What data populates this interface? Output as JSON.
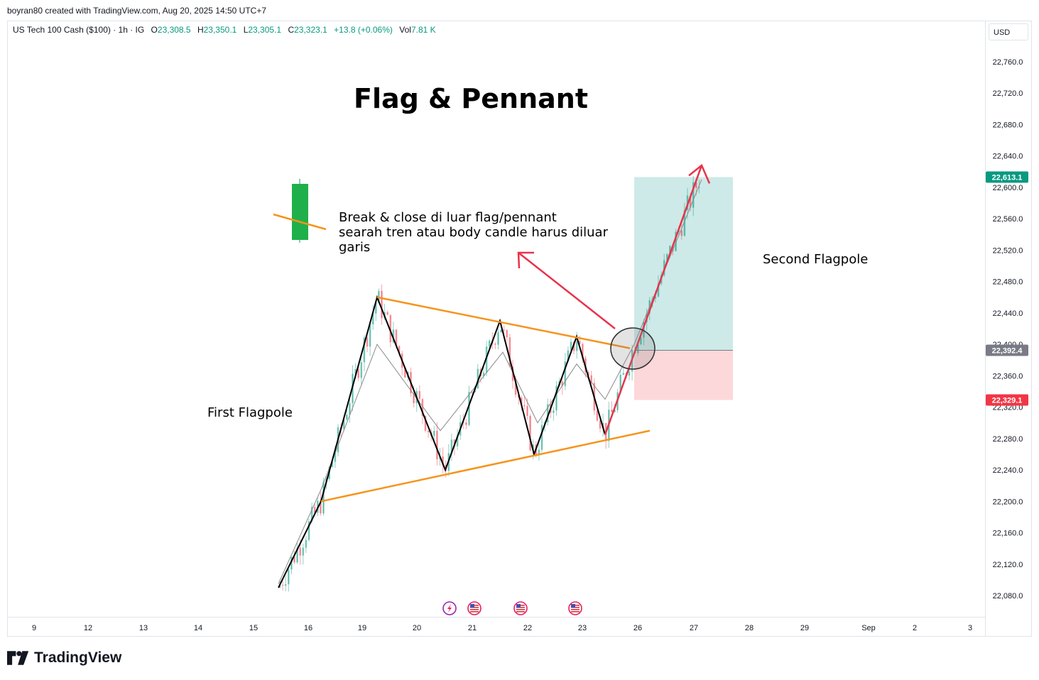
{
  "header": {
    "credit": "boyran80 created with TradingView.com, Aug 20, 2025 14:50 UTC+7",
    "symbol": "US Tech 100 Cash ($100) · 1h · IG",
    "o_label": "O",
    "o_value": "23,308.5",
    "h_label": "H",
    "h_value": "23,350.1",
    "l_label": "L",
    "l_value": "23,305.1",
    "c_label": "C",
    "c_value": "23,323.1",
    "change": "+13.8 (+0.06%)",
    "vol_label": "Vol",
    "vol_value": "7.81 K",
    "currency": "USD"
  },
  "footer": {
    "brand": "TradingView"
  },
  "colors": {
    "up": "#089981",
    "down": "#f23645",
    "trendline": "#f7931a",
    "zigzag": "#000000",
    "arrow": "#e8334a",
    "target_zone": "#b2dfdb",
    "stop_zone": "#fccbcd",
    "entry_badge": "#787b86",
    "target_badge": "#089981",
    "stop_badge": "#f23645"
  },
  "chart_data": {
    "type": "candlestick",
    "title": "Flag & Pennant",
    "ylabel": "",
    "xlabel": "",
    "ylim": [
      22050,
      22790
    ],
    "y_ticks": [
      22080,
      22120,
      22160,
      22200,
      22240,
      22280,
      22320,
      22360,
      22400,
      22440,
      22480,
      22520,
      22560,
      22600,
      22640,
      22680,
      22720,
      22760
    ],
    "x_ticks": [
      "9",
      "12",
      "13",
      "14",
      "15",
      "16",
      "19",
      "20",
      "21",
      "22",
      "23",
      "26",
      "27",
      "28",
      "29",
      "Sep",
      "2",
      "3"
    ],
    "x_range": [
      "9",
      "3"
    ],
    "annotations": {
      "title": "Flag & Pennant",
      "note": [
        "Break & close di luar flag/pennant",
        "searah tren atau body candle harus diluar",
        "garis"
      ],
      "first_flagpole": "First Flagpole",
      "second_flagpole": "Second Flagpole"
    },
    "price_markers": [
      {
        "label": "22,613.1",
        "value": 22613.1,
        "role": "target"
      },
      {
        "label": "22,392.4",
        "value": 22392.4,
        "role": "entry"
      },
      {
        "label": "22,329.1",
        "value": 22329.1,
        "role": "stop"
      }
    ],
    "position": {
      "entry": 22392.4,
      "target": 22613.1,
      "stop": 22329.1,
      "start": "25",
      "end": "27"
    },
    "flag_upper_trendline": [
      [
        "19",
        22460
      ],
      [
        "25",
        22395
      ]
    ],
    "flag_lower_trendline": [
      [
        "16",
        22200
      ],
      [
        "25",
        22290
      ]
    ],
    "price_path": [
      [
        "15",
        22090
      ],
      [
        "16",
        22200
      ],
      [
        "19",
        22460
      ],
      [
        "20",
        22240
      ],
      [
        "21",
        22430
      ],
      [
        "22",
        22260
      ],
      [
        "23",
        22410
      ],
      [
        "23",
        22285
      ],
      [
        "26",
        22400
      ],
      [
        "27",
        22620
      ]
    ],
    "grid": false,
    "events": [
      "lightning",
      "us-flag",
      "us-flag",
      "us-flag"
    ]
  }
}
